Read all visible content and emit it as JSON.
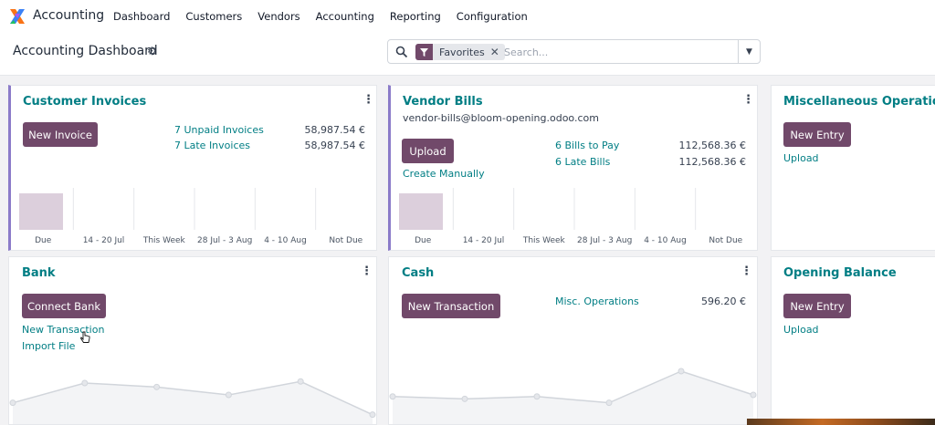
{
  "app": {
    "name": "Accounting"
  },
  "menu": [
    "Dashboard",
    "Customers",
    "Vendors",
    "Accounting",
    "Reporting",
    "Configuration"
  ],
  "page": {
    "title": "Accounting Dashboard"
  },
  "search": {
    "facet": "Favorites",
    "placeholder": "Search..."
  },
  "customer_invoices": {
    "title": "Customer Invoices",
    "button": "New Invoice",
    "rows": [
      {
        "label": "7 Unpaid Invoices",
        "amount": "58,987.54 €"
      },
      {
        "label": "7 Late Invoices",
        "amount": "58,987.54 €"
      }
    ]
  },
  "vendor_bills": {
    "title": "Vendor Bills",
    "email": "vendor-bills@bloom-opening.odoo.com",
    "button": "Upload",
    "create_manually": "Create Manually",
    "rows": [
      {
        "label": "6 Bills to Pay",
        "amount": "112,568.36 €"
      },
      {
        "label": "6 Late Bills",
        "amount": "112,568.36 €"
      }
    ]
  },
  "misc_operations": {
    "title": "Miscellaneous Operations",
    "button": "New Entry",
    "upload": "Upload"
  },
  "bank": {
    "title": "Bank",
    "button": "Connect Bank",
    "new_transaction": "New Transaction",
    "import_file": "Import File"
  },
  "cash": {
    "title": "Cash",
    "button": "New Transaction",
    "row": {
      "label": "Misc. Operations",
      "amount": "596.20 €"
    }
  },
  "opening_balance": {
    "title": "Opening Balance",
    "button": "New Entry",
    "upload": "Upload"
  },
  "colors": {
    "primary": "#71496a",
    "link": "#017e84",
    "accent_border": "#8b7bc9",
    "bar_due": "#dccfdc"
  },
  "chart_data": [
    {
      "type": "bar",
      "name": "customer-invoices-chart",
      "categories": [
        "Due",
        "14 - 20 Jul",
        "This Week",
        "28 Jul - 3 Aug",
        "4 - 10 Aug",
        "Not Due"
      ],
      "values": [
        1,
        0,
        0,
        0,
        0,
        0
      ]
    },
    {
      "type": "bar",
      "name": "vendor-bills-chart",
      "categories": [
        "Due",
        "14 - 20 Jul",
        "This Week",
        "28 Jul - 3 Aug",
        "4 - 10 Aug",
        "Not Due"
      ],
      "values": [
        1,
        0,
        0,
        0,
        0,
        0
      ]
    },
    {
      "type": "line",
      "name": "bank-chart",
      "values": [
        20,
        45,
        40,
        30,
        47,
        5
      ]
    },
    {
      "type": "line",
      "name": "cash-chart",
      "values": [
        28,
        25,
        28,
        20,
        60,
        30
      ]
    }
  ]
}
